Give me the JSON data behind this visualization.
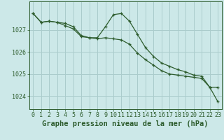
{
  "title": "Graphe pression niveau de la mer (hPa)",
  "background_color": "#cce8e8",
  "grid_color": "#aacccc",
  "line_color": "#2d5c2d",
  "marker_color": "#2d5c2d",
  "xlim": [
    -0.5,
    23.5
  ],
  "ylim": [
    1023.4,
    1028.3
  ],
  "yticks": [
    1024,
    1025,
    1026,
    1027
  ],
  "xticks": [
    0,
    1,
    2,
    3,
    4,
    5,
    6,
    7,
    8,
    9,
    10,
    11,
    12,
    13,
    14,
    15,
    16,
    17,
    18,
    19,
    20,
    21,
    22,
    23
  ],
  "series1": [
    1027.75,
    1027.35,
    1027.4,
    1027.35,
    1027.3,
    1027.15,
    1026.75,
    1026.65,
    1026.65,
    1027.15,
    1027.7,
    1027.75,
    1027.4,
    1026.8,
    1026.2,
    1025.8,
    1025.5,
    1025.35,
    1025.2,
    1025.1,
    1024.95,
    1024.9,
    1024.4,
    1024.4
  ],
  "series2": [
    1027.75,
    1027.35,
    1027.4,
    1027.35,
    1027.2,
    1027.05,
    1026.7,
    1026.65,
    1026.6,
    1026.65,
    1026.6,
    1026.55,
    1026.35,
    1025.95,
    1025.65,
    1025.4,
    1025.15,
    1025.0,
    1024.95,
    1024.9,
    1024.85,
    1024.8,
    1024.4,
    1023.75
  ],
  "tick_fontsize": 6.0,
  "xlabel_fontsize": 7.5
}
